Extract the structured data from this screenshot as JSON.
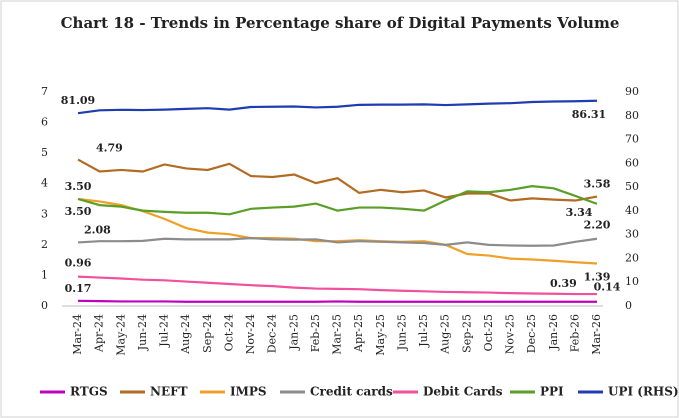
{
  "chart_data": {
    "type": "line",
    "title": "Chart 18 - Trends in Percentage share of Digital Payments Volume",
    "categories": [
      "Mar-24",
      "Apr-24",
      "May-24",
      "Jun-24",
      "Jul-24",
      "Aug-24",
      "Sep-24",
      "Oct-24",
      "Nov-24",
      "Dec-24",
      "Jan-25",
      "Feb-25",
      "Mar-25",
      "Apr-25",
      "May-25",
      "Jun-25",
      "Jul-25",
      "Aug-25",
      "Sep-25",
      "Oct-25",
      "Nov-25",
      "Dec-25",
      "Jan-26",
      "Feb-26",
      "Mar-26"
    ],
    "ylim": [
      0,
      7
    ],
    "yticks": [
      0,
      1,
      2,
      3,
      4,
      5,
      6,
      7
    ],
    "y2lim": [
      0,
      90
    ],
    "y2ticks": [
      0,
      10,
      20,
      30,
      40,
      50,
      60,
      70,
      80,
      90
    ],
    "series": [
      {
        "name": "RTGS",
        "color": "#c000c0",
        "values": [
          0.17,
          0.16,
          0.15,
          0.15,
          0.15,
          0.14,
          0.14,
          0.14,
          0.14,
          0.14,
          0.14,
          0.14,
          0.15,
          0.14,
          0.14,
          0.14,
          0.14,
          0.14,
          0.14,
          0.14,
          0.14,
          0.14,
          0.14,
          0.14,
          0.14
        ],
        "value_labels": [
          "0.17",
          null,
          null,
          null,
          null,
          null,
          null,
          null,
          null,
          null,
          null,
          null,
          null,
          null,
          null,
          null,
          null,
          null,
          null,
          null,
          null,
          null,
          null,
          null,
          "0.14"
        ]
      },
      {
        "name": "NEFT",
        "color": "#b36b22",
        "values": [
          4.79,
          4.4,
          4.45,
          4.4,
          4.63,
          4.5,
          4.45,
          4.65,
          4.25,
          4.22,
          4.3,
          4.02,
          4.18,
          3.7,
          3.8,
          3.72,
          3.78,
          3.55,
          3.68,
          3.68,
          3.45,
          3.52,
          3.48,
          3.45,
          3.58
        ],
        "value_labels": [
          "4.79",
          null,
          null,
          null,
          null,
          null,
          null,
          null,
          null,
          null,
          null,
          null,
          null,
          null,
          null,
          null,
          null,
          null,
          null,
          null,
          null,
          null,
          null,
          null,
          "3.58"
        ]
      },
      {
        "name": "IMPS",
        "color": "#f0a028",
        "values": [
          3.5,
          3.42,
          3.3,
          3.1,
          2.85,
          2.55,
          2.4,
          2.35,
          2.22,
          2.22,
          2.2,
          2.12,
          2.12,
          2.15,
          2.12,
          2.1,
          2.12,
          2.0,
          1.7,
          1.65,
          1.55,
          1.52,
          1.48,
          1.43,
          1.39
        ],
        "value_labels": [
          "3.50",
          null,
          null,
          null,
          null,
          null,
          null,
          null,
          null,
          null,
          null,
          null,
          null,
          null,
          null,
          null,
          null,
          null,
          null,
          null,
          null,
          null,
          null,
          null,
          "1.39"
        ]
      },
      {
        "name": "Credit cards",
        "color": "#8c8c8c",
        "values": [
          2.08,
          2.12,
          2.12,
          2.13,
          2.2,
          2.18,
          2.18,
          2.18,
          2.22,
          2.18,
          2.17,
          2.18,
          2.08,
          2.12,
          2.1,
          2.08,
          2.06,
          2.0,
          2.08,
          2.0,
          1.98,
          1.97,
          1.98,
          2.1,
          2.2
        ],
        "value_labels": [
          "2.08",
          null,
          null,
          null,
          null,
          null,
          null,
          null,
          null,
          null,
          null,
          null,
          null,
          null,
          null,
          null,
          null,
          null,
          null,
          null,
          null,
          null,
          null,
          null,
          "2.20"
        ]
      },
      {
        "name": "Debit Cards",
        "color": "#f0509c",
        "values": [
          0.96,
          0.93,
          0.9,
          0.86,
          0.84,
          0.8,
          0.76,
          0.72,
          0.68,
          0.65,
          0.6,
          0.57,
          0.56,
          0.55,
          0.52,
          0.5,
          0.48,
          0.46,
          0.45,
          0.44,
          0.42,
          0.41,
          0.4,
          0.39,
          0.39
        ],
        "value_labels": [
          "0.96",
          null,
          null,
          null,
          null,
          null,
          null,
          null,
          null,
          null,
          null,
          null,
          null,
          null,
          null,
          null,
          null,
          null,
          null,
          null,
          null,
          null,
          null,
          "0.39",
          null
        ]
      },
      {
        "name": "PPI",
        "color": "#5a9e28",
        "values": [
          3.5,
          3.3,
          3.25,
          3.12,
          3.08,
          3.05,
          3.05,
          3.0,
          3.18,
          3.22,
          3.25,
          3.35,
          3.12,
          3.22,
          3.22,
          3.18,
          3.12,
          3.45,
          3.75,
          3.72,
          3.8,
          3.92,
          3.85,
          3.6,
          3.34
        ],
        "value_labels": [
          "3.50",
          null,
          null,
          null,
          null,
          null,
          null,
          null,
          null,
          null,
          null,
          null,
          null,
          null,
          null,
          null,
          null,
          null,
          null,
          null,
          null,
          null,
          null,
          null,
          "3.34"
        ]
      },
      {
        "name": "UPI (RHS)",
        "color": "#1f3cb0",
        "axis": "y2",
        "values": [
          81.09,
          82.3,
          82.5,
          82.4,
          82.6,
          82.9,
          83.2,
          82.6,
          83.7,
          83.8,
          83.9,
          83.5,
          83.8,
          84.6,
          84.7,
          84.7,
          84.8,
          84.5,
          84.8,
          85.1,
          85.3,
          85.8,
          86.0,
          86.1,
          86.31
        ],
        "value_labels": [
          "81.09",
          null,
          null,
          null,
          null,
          null,
          null,
          null,
          null,
          null,
          null,
          null,
          null,
          null,
          null,
          null,
          null,
          null,
          null,
          null,
          null,
          null,
          null,
          null,
          "86.31"
        ]
      }
    ]
  }
}
